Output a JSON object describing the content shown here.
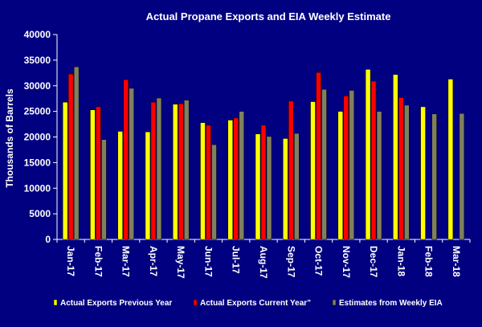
{
  "chart_data": {
    "type": "bar",
    "title": "Actual Propane Exports and EIA Weekly Estimate",
    "xlabel": "",
    "ylabel": "Thousands of Barrels",
    "ylim": [
      0,
      40000
    ],
    "yticks": [
      0,
      5000,
      10000,
      15000,
      20000,
      25000,
      30000,
      35000,
      40000
    ],
    "categories": [
      "Jan-17",
      "Feb-17",
      "Mar-17",
      "Apr-17",
      "May-17",
      "Jun-17",
      "Jul-17",
      "Aug-17",
      "Sep-17",
      "Oct-17",
      "Nov-17",
      "Dec-17",
      "Jan-18",
      "Feb-18",
      "Mar-18"
    ],
    "series": [
      {
        "name": "Actual Exports Previous Year",
        "color": "#ffff00",
        "values": [
          26800,
          25300,
          21100,
          21000,
          26400,
          22800,
          23300,
          20600,
          19700,
          26900,
          25000,
          33200,
          32200,
          25900,
          31300
        ]
      },
      {
        "name": "Actual Exports Current Year\"",
        "color": "#ff0000",
        "values": [
          32300,
          25900,
          31200,
          26800,
          26500,
          22300,
          23700,
          22300,
          27000,
          32600,
          28000,
          30900,
          27700,
          null,
          null
        ]
      },
      {
        "name": "Estimates from Weekly EIA",
        "color": "#808060",
        "values": [
          33700,
          19500,
          29500,
          27600,
          27200,
          18500,
          25000,
          20100,
          20700,
          29300,
          29100,
          25000,
          26200,
          24500,
          24600
        ]
      }
    ],
    "legend_position": "bottom",
    "grid": false
  }
}
